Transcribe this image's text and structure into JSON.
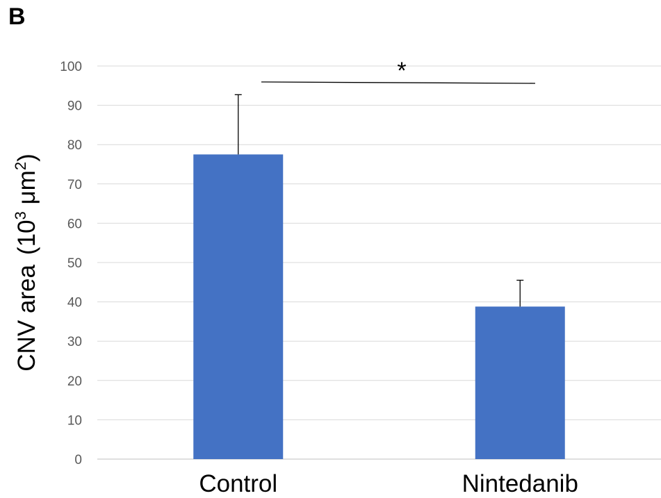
{
  "panel_label": "B",
  "chart_data": {
    "type": "bar",
    "categories": [
      "Control",
      "Nintedanib"
    ],
    "values": [
      77.5,
      38.8
    ],
    "error_upper": [
      92.7,
      45.5
    ],
    "ylabel_main": "CNV area",
    "ylabel_unit_open": "(10",
    "ylabel_exp1": "3",
    "ylabel_unit_mid": " μm",
    "ylabel_exp2": "2",
    "ylabel_unit_close": ")",
    "ylim": [
      0,
      100
    ],
    "yticks": [
      0,
      10,
      20,
      30,
      40,
      50,
      60,
      70,
      80,
      90,
      100
    ],
    "grid": true,
    "bar_color": "#4472C4",
    "significance": {
      "marker": "*",
      "between": [
        "Control",
        "Nintedanib"
      ]
    }
  }
}
